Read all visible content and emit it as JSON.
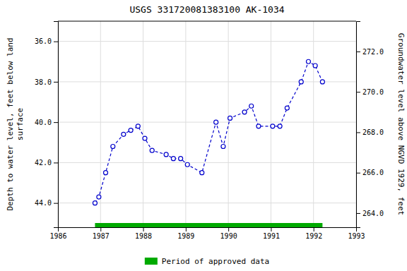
{
  "chart_data": {
    "type": "line",
    "title": "USGS 331720081383100 AK-1034",
    "ylabel": "Depth to water level, feet below land\nsurface",
    "y2label": "Groundwater level above NGVD 1929, feet",
    "series": [
      {
        "x": [
          1986.87,
          1986.96,
          1987.12,
          1987.29,
          1987.54,
          1987.71,
          1987.88,
          1988.04,
          1988.21,
          1988.54,
          1988.71,
          1988.88,
          1989.04,
          1989.38,
          1989.71,
          1989.88,
          1990.04,
          1990.38,
          1990.54,
          1990.71,
          1991.04,
          1991.21,
          1991.38,
          1991.71,
          1991.88,
          1992.04,
          1992.21
        ],
        "values": [
          44.0,
          43.7,
          42.5,
          41.2,
          40.6,
          40.4,
          40.2,
          40.8,
          41.4,
          41.6,
          41.8,
          41.8,
          42.1,
          42.5,
          40.0,
          41.2,
          39.8,
          39.5,
          39.2,
          40.2,
          40.2,
          40.2,
          39.3,
          38.0,
          37.0,
          37.2,
          38.0
        ],
        "color": "#0000cc",
        "marker": "circle",
        "line_style": "dashed"
      },
      {
        "name": "Period of approved data",
        "type": "span",
        "color": "#00aa00",
        "x": [
          1986.87,
          1992.21
        ]
      }
    ],
    "xlim": [
      1986,
      1993
    ],
    "xticks": [
      1986,
      1987,
      1988,
      1989,
      1990,
      1991,
      1992,
      1993
    ],
    "ylim": [
      45.2,
      35.0
    ],
    "yticks": [
      {
        "value": 44.0,
        "label": "44.0"
      },
      {
        "value": 42.0,
        "label": "42.0"
      },
      {
        "value": 40.0,
        "label": "40.0"
      },
      {
        "value": 38.0,
        "label": "38.0"
      },
      {
        "value": 36.0,
        "label": "36.0"
      }
    ],
    "y2lim": [
      263.3,
      273.5
    ],
    "y2ticks": [
      {
        "value": 264.0,
        "label": "264.0"
      },
      {
        "value": 266.0,
        "label": "266.0"
      },
      {
        "value": 268.0,
        "label": "268.0"
      },
      {
        "value": 270.0,
        "label": "270.0"
      },
      {
        "value": 272.0,
        "label": "272.0"
      }
    ],
    "grid": true,
    "legend": "bottom"
  }
}
